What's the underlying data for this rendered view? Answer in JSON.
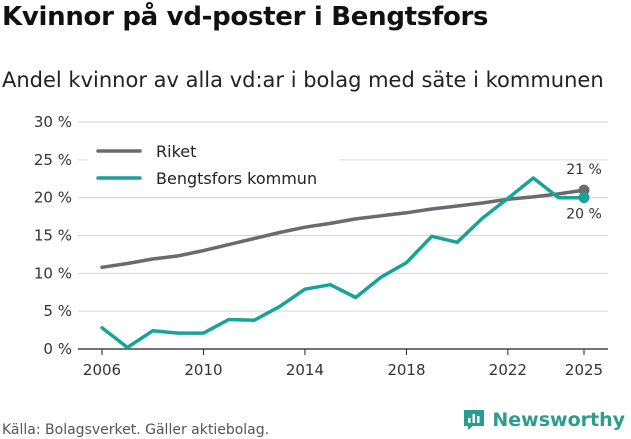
{
  "title": "Kvinnor på vd-poster i Bengtsfors",
  "subtitle": "Andel kvinnor av alla vd:ar i bolag med säte i kommunen",
  "source": "Källa: Bolagsverket. Gäller aktiebolag.",
  "brand": {
    "name": "Newsworthy",
    "color": "#2a9d8f",
    "icon": "newsworthy-logo-icon"
  },
  "chart_data": {
    "type": "line",
    "title": "Kvinnor på vd-poster i Bengtsfors",
    "subtitle": "Andel kvinnor av alla vd:ar i bolag med säte i kommunen",
    "xlabel": "",
    "ylabel": "",
    "ylim": [
      0,
      30
    ],
    "xlim": [
      2006,
      2025
    ],
    "yticks": [
      0,
      5,
      10,
      15,
      20,
      25,
      30
    ],
    "ytick_labels": [
      "0 %",
      "5 %",
      "10 %",
      "15 %",
      "20 %",
      "25 %",
      "30 %"
    ],
    "xticks": [
      2006,
      2010,
      2014,
      2018,
      2022,
      2025
    ],
    "xtick_labels": [
      "2006",
      "2010",
      "2014",
      "2018",
      "2022",
      "2025"
    ],
    "grid": true,
    "legend_position": "top-left",
    "x": [
      2006,
      2007,
      2008,
      2009,
      2010,
      2011,
      2012,
      2013,
      2014,
      2015,
      2016,
      2017,
      2018,
      2019,
      2020,
      2021,
      2022,
      2023,
      2024,
      2025
    ],
    "series": [
      {
        "name": "Riket",
        "color": "#6b6b6f",
        "values": [
          10.8,
          11.3,
          11.9,
          12.3,
          13.0,
          13.8,
          14.6,
          15.4,
          16.1,
          16.6,
          17.2,
          17.6,
          18.0,
          18.5,
          18.9,
          19.3,
          19.8,
          20.1,
          20.5,
          21.0
        ],
        "end_label": "21 %"
      },
      {
        "name": "Bengtsfors kommun",
        "color": "#17a398",
        "values": [
          2.8,
          0.2,
          2.4,
          2.1,
          2.1,
          3.9,
          3.8,
          5.6,
          7.9,
          8.5,
          6.8,
          9.5,
          11.4,
          14.9,
          14.1,
          17.3,
          19.9,
          22.6,
          20.0,
          20.0
        ],
        "end_label": "20 %"
      }
    ]
  }
}
